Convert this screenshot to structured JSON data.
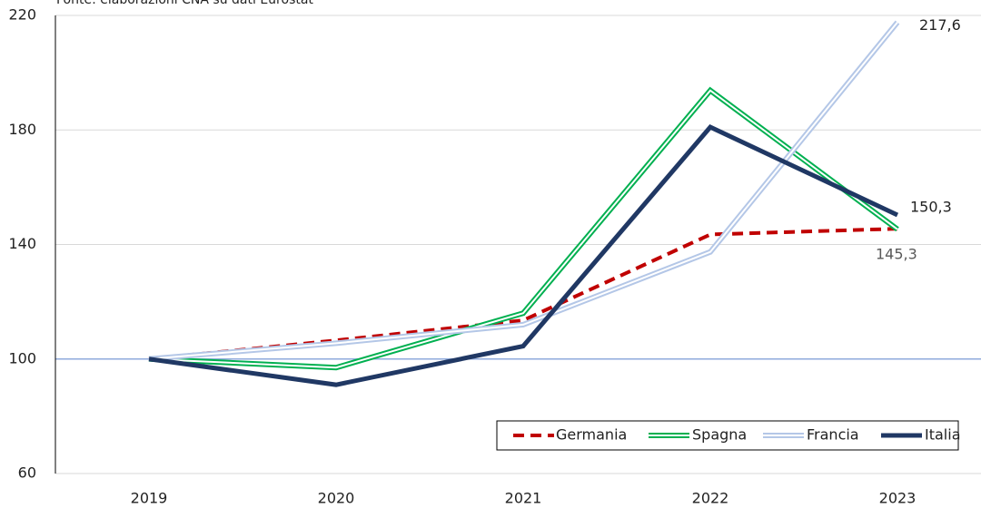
{
  "chart_data": {
    "type": "line",
    "subtitle": "Fonte: elaborazioni CNA su dati Eurostat",
    "categories": [
      "2019",
      "2020",
      "2021",
      "2022",
      "2023"
    ],
    "series": [
      {
        "name": "Germania",
        "color": "#c00000",
        "style": "dashed",
        "values": [
          100,
          106.5,
          113.5,
          143.5,
          145.5
        ],
        "value_labels": [
          null,
          null,
          null,
          null,
          null
        ]
      },
      {
        "name": "Spagna",
        "color": "#00b050",
        "style": "double",
        "values": [
          100,
          97,
          116,
          193.8,
          145.3
        ],
        "value_labels": [
          null,
          null,
          null,
          null,
          "145,3"
        ]
      },
      {
        "name": "Francia",
        "color": "#b4c7e7",
        "style": "double",
        "values": [
          100,
          105.5,
          112,
          137.4,
          217.6
        ],
        "value_labels": [
          null,
          null,
          null,
          null,
          "217,6"
        ]
      },
      {
        "name": "Italia",
        "color": "#203864",
        "style": "solid",
        "values": [
          100,
          91,
          104.5,
          181,
          150.3
        ],
        "value_labels": [
          null,
          null,
          null,
          null,
          "150,3"
        ]
      }
    ],
    "ylim": [
      60,
      220
    ],
    "yticks": [
      60,
      100,
      140,
      180,
      220
    ],
    "reference_line": 100,
    "grid": true,
    "legend": "lower right"
  }
}
